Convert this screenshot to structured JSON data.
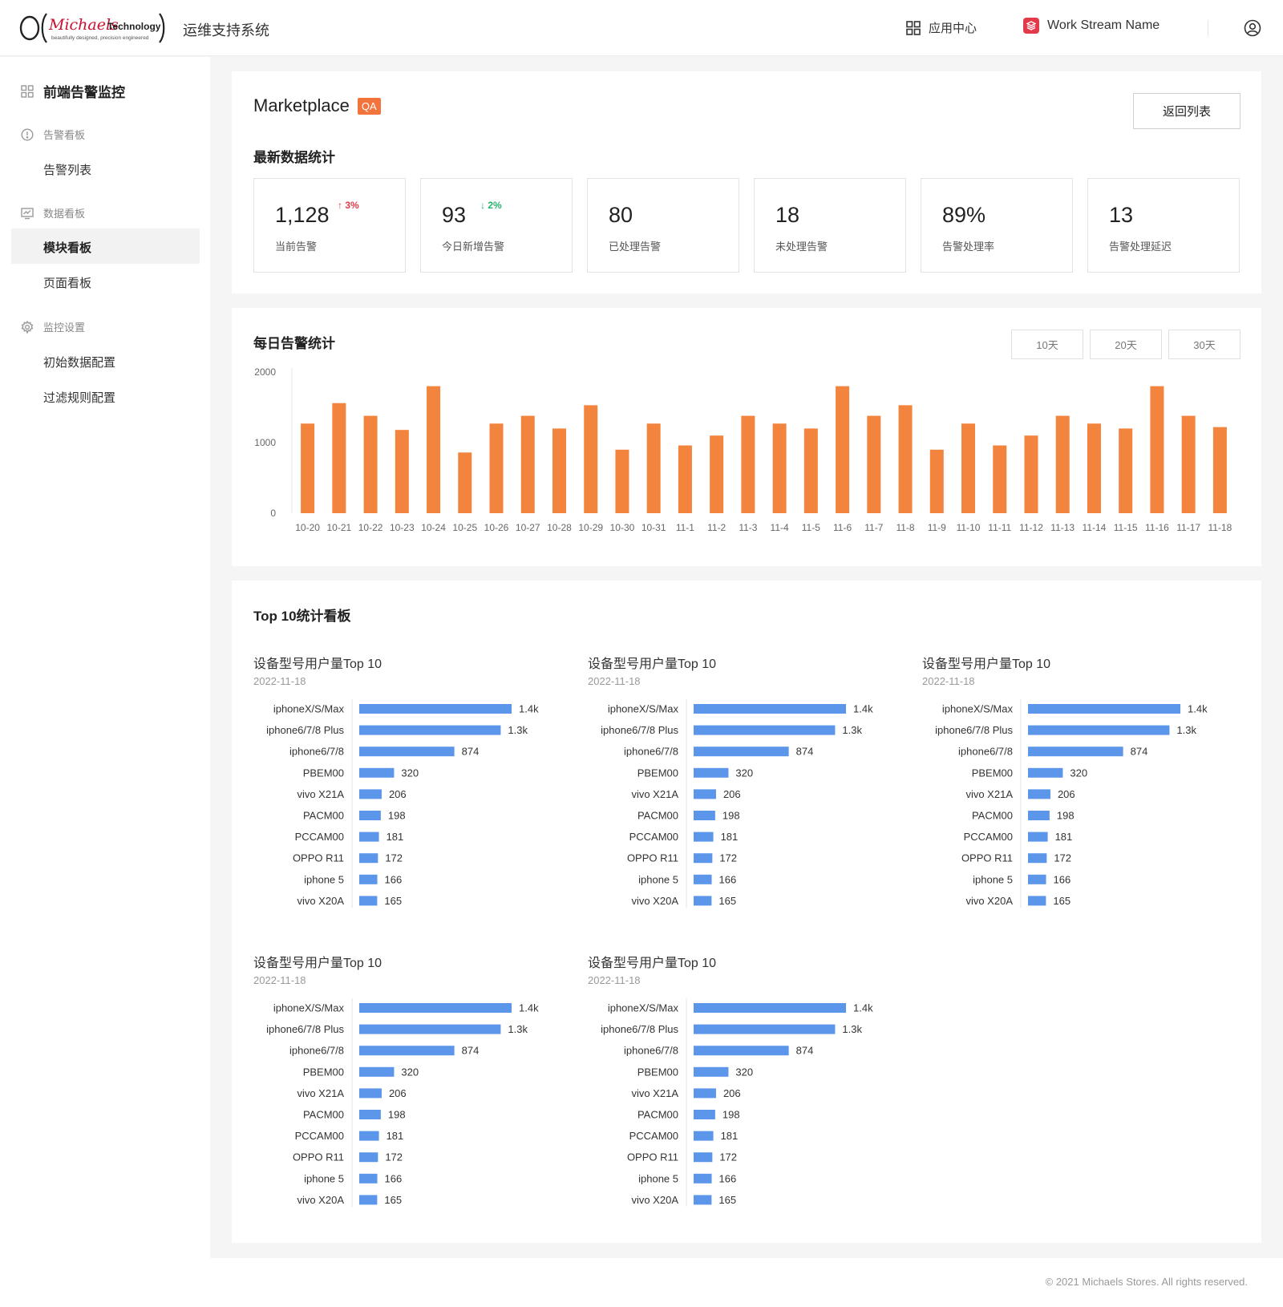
{
  "header": {
    "logo_text": "Michaels Technology",
    "logo_tagline": "beautifully designed, precision engineered",
    "system_name": "运维支持系统",
    "app_center": "应用中心",
    "workstream": "Work Stream Name"
  },
  "sidebar": {
    "title": "前端告警监控",
    "groups": [
      {
        "label": "告警看板",
        "icon": "alert-circle-icon",
        "items": [
          {
            "label": "告警列表"
          }
        ]
      },
      {
        "label": "数据看板",
        "icon": "chart-monitor-icon",
        "items": [
          {
            "label": "模块看板",
            "active": true
          },
          {
            "label": "页面看板"
          }
        ]
      },
      {
        "label": "监控设置",
        "icon": "gear-icon",
        "items": [
          {
            "label": "初始数据配置"
          },
          {
            "label": "过滤规则配置"
          }
        ]
      }
    ]
  },
  "overview": {
    "title": "Marketplace",
    "badge": "QA",
    "back_button": "返回列表",
    "section_title": "最新数据统计",
    "stats": [
      {
        "value": "1,128",
        "label": "当前告警",
        "trend": "3%",
        "trend_dir": "up"
      },
      {
        "value": "93",
        "label": "今日新增告警",
        "trend": "2%",
        "trend_dir": "down"
      },
      {
        "value": "80",
        "label": "已处理告警"
      },
      {
        "value": "18",
        "label": "未处理告警"
      },
      {
        "value": "89%",
        "label": "告警处理率"
      },
      {
        "value": "13",
        "label": "告警处理延迟"
      }
    ]
  },
  "daily": {
    "title": "每日告警统计",
    "ranges": [
      "10天",
      "20天",
      "30天"
    ]
  },
  "top10": {
    "title": "Top 10统计看板",
    "panels": [
      {
        "title": "设备型号用户量Top 10",
        "date": "2022-11-18"
      },
      {
        "title": "设备型号用户量Top 10",
        "date": "2022-11-18"
      },
      {
        "title": "设备型号用户量Top 10",
        "date": "2022-11-18"
      },
      {
        "title": "设备型号用户量Top 10",
        "date": "2022-11-18"
      },
      {
        "title": "设备型号用户量Top 10",
        "date": "2022-11-18"
      }
    ]
  },
  "footer": {
    "copyright": "© 2021 Michaels Stores. All rights reserved."
  },
  "colors": {
    "accent": "#f3843e",
    "bar_blue": "#5b96eb",
    "trend_up": "#e23a4a",
    "trend_down": "#27b36b"
  },
  "chart_data": [
    {
      "type": "bar",
      "title": "每日告警统计",
      "categories": [
        "10-20",
        "10-21",
        "10-22",
        "10-23",
        "10-24",
        "10-25",
        "10-26",
        "10-27",
        "10-28",
        "10-29",
        "10-30",
        "10-31",
        "11-1",
        "11-2",
        "11-3",
        "11-4",
        "11-5",
        "11-6",
        "11-7",
        "11-8",
        "11-9",
        "11-10",
        "11-11",
        "11-12",
        "11-13",
        "11-14",
        "11-15",
        "11-16",
        "11-17",
        "11-18"
      ],
      "values": [
        1270,
        1560,
        1380,
        1180,
        1800,
        860,
        1270,
        1380,
        1200,
        1530,
        900,
        1270,
        960,
        1100,
        1380,
        1270,
        1200,
        1800,
        1380,
        1530,
        900,
        1270,
        960,
        1100,
        1380,
        1270,
        1200,
        1800,
        1380,
        1220
      ],
      "ylim": [
        0,
        2000
      ],
      "yticks": [
        0,
        1000,
        2000
      ],
      "color": "#f3843e"
    },
    {
      "type": "bar",
      "orientation": "horizontal",
      "title": "设备型号用户量Top 10",
      "categories": [
        "iphoneX/S/Max",
        "iphone6/7/8 Plus",
        "iphone6/7/8",
        "PBEM00",
        "vivo X21A",
        "PACM00",
        "PCCAM00",
        "OPPO R11",
        "iphone 5",
        "vivo X20A"
      ],
      "values": [
        1400,
        1300,
        874,
        320,
        206,
        198,
        181,
        172,
        166,
        165
      ],
      "value_labels": [
        "1.4k",
        "1.3k",
        "874",
        "320",
        "206",
        "198",
        "181",
        "172",
        "166",
        "165"
      ],
      "color": "#5b96eb"
    }
  ]
}
